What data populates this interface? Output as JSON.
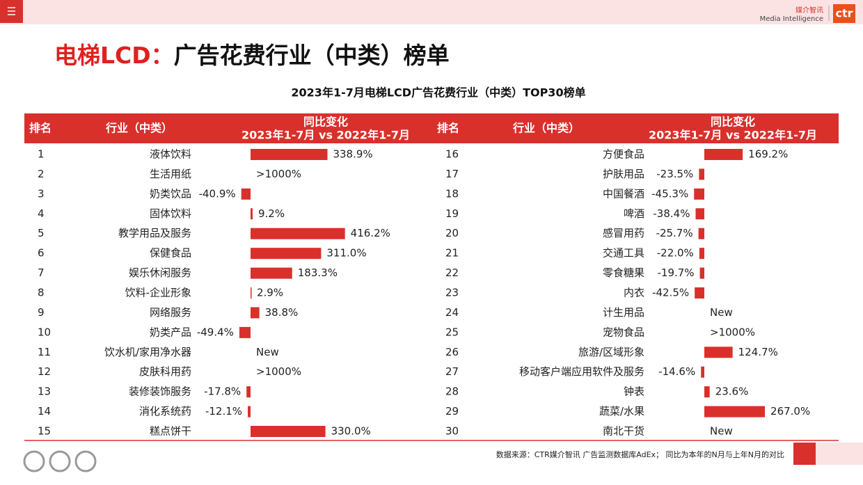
{
  "header": {
    "logo_cn": "媒介智讯",
    "logo_en": "Media Intelligence",
    "logo_mark": "ctr"
  },
  "title": {
    "highlight": "电梯LCD：",
    "rest": "广告花费行业（中类）榜单"
  },
  "table": {
    "caption": "2023年1-7月电梯LCD广告花费行业（中类）TOP30榜单",
    "columns": {
      "rank": "排名",
      "industry": "行业（中类）",
      "change": "同比变化",
      "period": "2023年1-7月 vs 2022年1-7月"
    },
    "rows": [
      {
        "rank": 1,
        "industry": "液体饮料",
        "change": {
          "value": 338.9,
          "label": "338.9%"
        }
      },
      {
        "rank": 2,
        "industry": "生活用纸",
        "change": ">1000%"
      },
      {
        "rank": 3,
        "industry": "奶类饮品",
        "change": {
          "value": -40.9,
          "label": "-40.9%"
        }
      },
      {
        "rank": 4,
        "industry": "固体饮料",
        "change": {
          "value": 9.2,
          "label": "9.2%"
        }
      },
      {
        "rank": 5,
        "industry": "教学用品及服务",
        "change": {
          "value": 416.2,
          "label": "416.2%"
        }
      },
      {
        "rank": 6,
        "industry": "保健食品",
        "change": {
          "value": 311.0,
          "label": "311.0%"
        }
      },
      {
        "rank": 7,
        "industry": "娱乐休闲服务",
        "change": {
          "value": 183.3,
          "label": "183.3%"
        }
      },
      {
        "rank": 8,
        "industry": "饮料-企业形象",
        "change": {
          "value": 2.9,
          "label": "2.9%"
        }
      },
      {
        "rank": 9,
        "industry": "网络服务",
        "change": {
          "value": 38.8,
          "label": "38.8%"
        }
      },
      {
        "rank": 10,
        "industry": "奶类产品",
        "change": {
          "value": -49.4,
          "label": "-49.4%"
        }
      },
      {
        "rank": 11,
        "industry": "饮水机/家用净水器",
        "change": "New"
      },
      {
        "rank": 12,
        "industry": "皮肤科用药",
        "change": ">1000%"
      },
      {
        "rank": 13,
        "industry": "装修装饰服务",
        "change": {
          "value": -17.8,
          "label": "-17.8%"
        }
      },
      {
        "rank": 14,
        "industry": "消化系统药",
        "change": {
          "value": -12.1,
          "label": "-12.1%"
        }
      },
      {
        "rank": 15,
        "industry": "糕点饼干",
        "change": {
          "value": 330.0,
          "label": "330.0%"
        }
      },
      {
        "rank": 16,
        "industry": "方便食品",
        "change": {
          "value": 169.2,
          "label": "169.2%"
        }
      },
      {
        "rank": 17,
        "industry": "护肤用品",
        "change": {
          "value": -23.5,
          "label": "-23.5%"
        }
      },
      {
        "rank": 18,
        "industry": "中国餐酒",
        "change": {
          "value": -45.3,
          "label": "-45.3%"
        }
      },
      {
        "rank": 19,
        "industry": "啤酒",
        "change": {
          "value": -38.4,
          "label": "-38.4%"
        }
      },
      {
        "rank": 20,
        "industry": "感冒用药",
        "change": {
          "value": -25.7,
          "label": "-25.7%"
        }
      },
      {
        "rank": 21,
        "industry": "交通工具",
        "change": {
          "value": -22.0,
          "label": "-22.0%"
        }
      },
      {
        "rank": 22,
        "industry": "零食糖果",
        "change": {
          "value": -19.7,
          "label": "-19.7%"
        }
      },
      {
        "rank": 23,
        "industry": "内衣",
        "change": {
          "value": -42.5,
          "label": "-42.5%"
        }
      },
      {
        "rank": 24,
        "industry": "计生用品",
        "change": "New"
      },
      {
        "rank": 25,
        "industry": "宠物食品",
        "change": ">1000%"
      },
      {
        "rank": 26,
        "industry": "旅游/区域形象",
        "change": {
          "value": 124.7,
          "label": "124.7%"
        }
      },
      {
        "rank": 27,
        "industry": "移动客户端应用软件及服务",
        "change": {
          "value": -14.6,
          "label": "-14.6%"
        }
      },
      {
        "rank": 28,
        "industry": "钟表",
        "change": {
          "value": 23.6,
          "label": "23.6%"
        }
      },
      {
        "rank": 29,
        "industry": "蔬菜/水果",
        "change": {
          "value": 267.0,
          "label": "267.0%"
        }
      },
      {
        "rank": 30,
        "industry": "南北干货",
        "change": "New"
      }
    ]
  },
  "footer": {
    "source": "数据来源：CTR媒介智讯 广告监测数据库AdEx； 同比为本年的N月与上年N月的对比"
  }
}
